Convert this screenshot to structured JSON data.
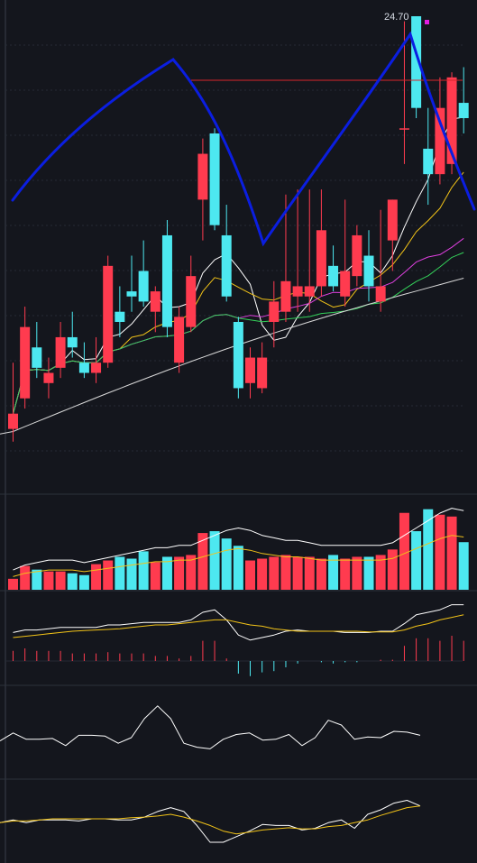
{
  "chart_data": {
    "type": "candlestick",
    "price_annotation": "24.70",
    "colors": {
      "background": "#14161d",
      "up": "#ff3b4f",
      "down": "#4de8f0",
      "ma5": "#ffffff",
      "ma10": "#f2c318",
      "ma20": "#e040e0",
      "ma30": "#34d15a",
      "ma60": "#d9d9d9",
      "trend_line": "#0b1ee0",
      "ref_line": "#d7262b",
      "marker": "#e11ee1"
    },
    "candles": [
      {
        "o": 16.6,
        "h": 17.9,
        "l": 16.35,
        "c": 16.9
      },
      {
        "o": 17.2,
        "h": 19.0,
        "l": 17.0,
        "c": 18.6
      },
      {
        "o": 18.2,
        "h": 18.7,
        "l": 17.6,
        "c": 17.8
      },
      {
        "o": 17.5,
        "h": 18.0,
        "l": 17.2,
        "c": 17.7
      },
      {
        "o": 17.8,
        "h": 18.7,
        "l": 17.6,
        "c": 18.4
      },
      {
        "o": 18.4,
        "h": 18.9,
        "l": 18.0,
        "c": 18.2
      },
      {
        "o": 17.9,
        "h": 18.3,
        "l": 17.6,
        "c": 17.7
      },
      {
        "o": 17.7,
        "h": 18.4,
        "l": 17.5,
        "c": 17.9
      },
      {
        "o": 17.9,
        "h": 20.0,
        "l": 17.8,
        "c": 19.8
      },
      {
        "o": 18.9,
        "h": 19.4,
        "l": 18.4,
        "c": 18.7
      },
      {
        "o": 19.3,
        "h": 20.0,
        "l": 18.9,
        "c": 19.2
      },
      {
        "o": 19.7,
        "h": 20.3,
        "l": 19.0,
        "c": 19.1
      },
      {
        "o": 18.9,
        "h": 19.4,
        "l": 18.5,
        "c": 19.3
      },
      {
        "o": 20.4,
        "h": 20.7,
        "l": 18.4,
        "c": 18.6
      },
      {
        "o": 17.9,
        "h": 19.0,
        "l": 17.7,
        "c": 18.8
      },
      {
        "o": 18.6,
        "h": 20.0,
        "l": 18.5,
        "c": 19.6
      },
      {
        "o": 21.1,
        "h": 22.3,
        "l": 20.3,
        "c": 22.0
      },
      {
        "o": 22.4,
        "h": 22.5,
        "l": 20.5,
        "c": 20.6
      },
      {
        "o": 20.4,
        "h": 21.0,
        "l": 19.1,
        "c": 19.2
      },
      {
        "o": 18.7,
        "h": 18.8,
        "l": 17.2,
        "c": 17.4
      },
      {
        "o": 17.5,
        "h": 18.2,
        "l": 17.2,
        "c": 18.0
      },
      {
        "o": 17.4,
        "h": 18.3,
        "l": 17.3,
        "c": 18.0
      },
      {
        "o": 18.7,
        "h": 19.5,
        "l": 18.2,
        "c": 19.1
      },
      {
        "o": 18.9,
        "h": 21.2,
        "l": 18.7,
        "c": 19.5
      },
      {
        "o": 19.2,
        "h": 21.3,
        "l": 18.9,
        "c": 19.4
      },
      {
        "o": 19.2,
        "h": 21.3,
        "l": 18.9,
        "c": 19.4
      },
      {
        "o": 19.4,
        "h": 21.3,
        "l": 19.2,
        "c": 20.5
      },
      {
        "o": 19.8,
        "h": 20.2,
        "l": 19.3,
        "c": 19.4
      },
      {
        "o": 19.2,
        "h": 21.1,
        "l": 19.0,
        "c": 19.7
      },
      {
        "o": 19.6,
        "h": 20.6,
        "l": 19.4,
        "c": 20.4
      },
      {
        "o": 20.0,
        "h": 20.5,
        "l": 19.1,
        "c": 19.4
      },
      {
        "o": 19.1,
        "h": 20.9,
        "l": 18.9,
        "c": 19.4
      },
      {
        "o": 20.3,
        "h": 21.1,
        "l": 19.7,
        "c": 21.1
      },
      {
        "o": 22.5,
        "h": 24.6,
        "l": 21.8,
        "c": 22.5
      },
      {
        "o": 24.7,
        "h": 24.7,
        "l": 22.7,
        "c": 22.9
      },
      {
        "o": 22.1,
        "h": 22.9,
        "l": 21.0,
        "c": 21.6
      },
      {
        "o": 21.6,
        "h": 23.5,
        "l": 21.4,
        "c": 22.9
      },
      {
        "o": 21.8,
        "h": 23.6,
        "l": 21.6,
        "c": 23.5
      },
      {
        "o": 23.0,
        "h": 23.7,
        "l": 22.4,
        "c": 22.7
      }
    ],
    "volume": [
      6,
      13,
      11,
      10,
      10,
      9,
      8,
      14,
      16,
      18,
      17,
      21,
      15,
      18,
      18,
      19,
      31,
      32,
      28,
      24,
      16,
      17,
      18,
      19,
      18,
      18,
      17,
      19,
      17,
      18,
      18,
      19,
      22,
      42,
      32,
      44,
      41,
      40,
      26
    ],
    "volume_ma": [
      8,
      10,
      11,
      12,
      12,
      12,
      11,
      12,
      13,
      14,
      15,
      16,
      17,
      17,
      18,
      18,
      20,
      22,
      24,
      25,
      24,
      22,
      21,
      20,
      20,
      19,
      18,
      18,
      18,
      18,
      18,
      18,
      19,
      22,
      25,
      28,
      31,
      33,
      32
    ],
    "macd": {
      "dif": [
        0.7,
        0.8,
        0.8,
        0.85,
        0.9,
        0.9,
        0.9,
        0.9,
        1.0,
        1.0,
        1.05,
        1.1,
        1.1,
        1.1,
        1.1,
        1.2,
        1.5,
        1.6,
        1.2,
        0.6,
        0.4,
        0.5,
        0.6,
        0.75,
        0.8,
        0.75,
        0.75,
        0.75,
        0.7,
        0.7,
        0.7,
        0.75,
        0.75,
        1.05,
        1.4,
        1.5,
        1.6,
        1.8,
        1.8
      ],
      "dea": [
        0.5,
        0.55,
        0.6,
        0.65,
        0.7,
        0.75,
        0.78,
        0.8,
        0.82,
        0.85,
        0.9,
        0.95,
        1.0,
        1.0,
        1.05,
        1.1,
        1.15,
        1.2,
        1.2,
        1.1,
        1.0,
        0.95,
        0.85,
        0.8,
        0.75,
        0.75,
        0.75,
        0.75,
        0.75,
        0.75,
        0.72,
        0.72,
        0.72,
        0.8,
        0.95,
        1.05,
        1.2,
        1.3,
        1.4
      ],
      "hist": [
        0.4,
        0.5,
        0.4,
        0.4,
        0.4,
        0.3,
        0.3,
        0.3,
        0.35,
        0.3,
        0.3,
        0.3,
        0.2,
        0.2,
        0.1,
        0.2,
        0.8,
        0.8,
        0.1,
        -0.5,
        -0.6,
        -0.45,
        -0.4,
        -0.25,
        -0.1,
        0.0,
        -0.05,
        -0.1,
        -0.05,
        -0.05,
        0.0,
        0.05,
        0.05,
        0.6,
        0.9,
        0.9,
        0.8,
        1.0,
        0.8
      ]
    },
    "osc1": [
      38,
      48,
      40,
      40,
      41,
      32,
      45,
      45,
      44,
      35,
      42,
      66,
      82,
      66,
      35,
      30,
      28,
      40,
      46,
      48,
      39,
      40,
      46,
      32,
      42,
      64,
      58,
      40,
      43,
      42,
      50,
      49,
      45
    ],
    "osc2": {
      "k": [
        0.35,
        0.4,
        0.35,
        0.4,
        0.4,
        0.4,
        0.38,
        0.42,
        0.42,
        0.4,
        0.4,
        0.45,
        0.55,
        0.62,
        0.55,
        0.3,
        0.0,
        0.0,
        0.1,
        0.2,
        0.32,
        0.3,
        0.3,
        0.22,
        0.25,
        0.35,
        0.4,
        0.25,
        0.5,
        0.58,
        0.7,
        0.75,
        0.65
      ],
      "d": [
        0.35,
        0.38,
        0.38,
        0.4,
        0.42,
        0.42,
        0.42,
        0.42,
        0.42,
        0.42,
        0.44,
        0.45,
        0.47,
        0.5,
        0.45,
        0.38,
        0.3,
        0.2,
        0.15,
        0.18,
        0.22,
        0.24,
        0.26,
        0.24,
        0.24,
        0.28,
        0.3,
        0.35,
        0.4,
        0.48,
        0.55,
        0.62,
        0.65
      ]
    }
  }
}
